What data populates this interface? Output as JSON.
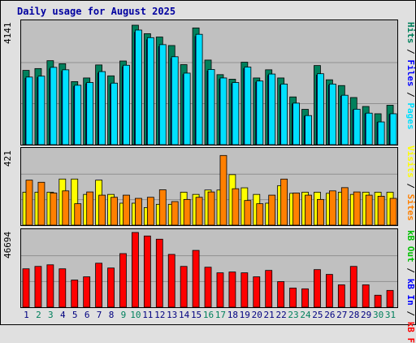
{
  "title": "Daily usage for August 2025",
  "panels": {
    "top": {
      "max_label": "4141",
      "legend": {
        "pages": "Pages",
        "files": "Files",
        "hits": "Hits",
        "sep": " / "
      }
    },
    "middle": {
      "max_label": "421",
      "legend": {
        "sites": "Sites",
        "visits": "Visits",
        "sep": " / "
      }
    },
    "bottom": {
      "max_label": "46694",
      "legend": {
        "kbf": "kB F",
        "kbin": "kB In",
        "kbout": "kB Out",
        "sep": " / "
      }
    }
  },
  "colors": {
    "hits": "#00805c",
    "files": "#0000ff",
    "pages": "#00e0ff",
    "visits": "#ffff00",
    "sites": "#ff8000",
    "kbf": "#ff0000",
    "kbin": "#0000ff",
    "kbout": "#00c000",
    "weekend": "#00805c",
    "weekday": "#000080"
  },
  "chart_data": {
    "type": "bar",
    "title": "Daily usage for August 2025",
    "categories": [
      "1",
      "2",
      "3",
      "4",
      "5",
      "6",
      "7",
      "8",
      "9",
      "10",
      "11",
      "12",
      "13",
      "14",
      "15",
      "16",
      "17",
      "18",
      "19",
      "20",
      "21",
      "22",
      "23",
      "24",
      "25",
      "26",
      "27",
      "28",
      "29",
      "30",
      "31"
    ],
    "weekend_days": [
      2,
      3,
      9,
      10,
      16,
      17,
      23,
      24,
      30,
      31
    ],
    "series_top": [
      {
        "name": "Hits",
        "values": [
          2450,
          2510,
          2770,
          2670,
          2080,
          2200,
          2630,
          2270,
          2760,
          3940,
          3660,
          3550,
          3270,
          2640,
          3850,
          2790,
          2310,
          2160,
          2720,
          2200,
          2470,
          2200,
          1575,
          1165,
          2610,
          2140,
          1950,
          1555,
          1260,
          1020,
          1300
        ]
      },
      {
        "name": "Pages",
        "values": [
          2230,
          2260,
          2550,
          2470,
          1960,
          2050,
          2410,
          2030,
          2620,
          3780,
          3530,
          3300,
          2900,
          2360,
          3640,
          2480,
          2200,
          2050,
          2560,
          2100,
          2330,
          2000,
          1370,
          960,
          2340,
          2000,
          1630,
          1170,
          1040,
          750,
          1020
        ]
      }
    ],
    "series_middle": [
      {
        "name": "Visits",
        "values": [
          150,
          150,
          150,
          210,
          210,
          140,
          205,
          140,
          100,
          100,
          80,
          95,
          95,
          150,
          140,
          160,
          160,
          230,
          170,
          140,
          100,
          180,
          145,
          150,
          150,
          145,
          150,
          140,
          150,
          150,
          150
        ]
      },
      {
        "name": "Sites",
        "values": [
          210,
          200,
          150,
          160,
          100,
          155,
          140,
          130,
          140,
          125,
          130,
          165,
          110,
          120,
          130,
          155,
          325,
          170,
          115,
          100,
          140,
          215,
          150,
          140,
          120,
          160,
          175,
          155,
          140,
          135,
          125
        ]
      }
    ],
    "series_bottom": [
      {
        "name": "kB F",
        "values": [
          24000,
          25500,
          26500,
          24000,
          17000,
          19000,
          27500,
          24500,
          33500,
          46694,
          44500,
          42500,
          33000,
          25500,
          35500,
          25000,
          21500,
          22000,
          21500,
          19000,
          23000,
          16000,
          12000,
          11500,
          23500,
          20500,
          14000,
          25500,
          14000,
          7500,
          10500
        ]
      }
    ]
  },
  "axis": {
    "days": [
      "1",
      "2",
      "3",
      "4",
      "5",
      "6",
      "7",
      "8",
      "9",
      "10",
      "11",
      "12",
      "13",
      "14",
      "15",
      "16",
      "17",
      "18",
      "19",
      "20",
      "21",
      "22",
      "23",
      "24",
      "25",
      "26",
      "27",
      "28",
      "29",
      "30",
      "31"
    ]
  }
}
